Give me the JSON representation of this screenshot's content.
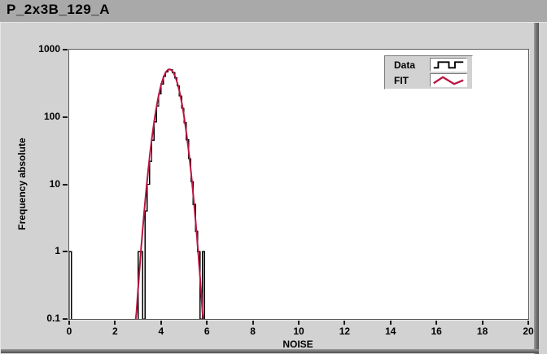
{
  "window": {
    "title": "P_2x3B_129_A"
  },
  "colors": {
    "titlebar_bg": "#a9a9a9",
    "panel_bg": "#d2d2d2",
    "plot_bg": "#ffffff",
    "plot_border": "#5a5a5a",
    "text": "#000000",
    "data_series": "#000000",
    "fit_series": "#b81543"
  },
  "chart_data": {
    "type": "bar",
    "subtype": "histogram-with-gaussian-fit",
    "title": "P_2x3B_129_A",
    "xlabel": "NOISE",
    "ylabel": "Frequency absolute",
    "x_range": [
      0,
      20
    ],
    "y_range": [
      0.1,
      1000
    ],
    "y_scale": "log",
    "grid": false,
    "legend_position": "top-right-inside",
    "x_ticks": [
      0,
      2,
      4,
      6,
      8,
      10,
      12,
      14,
      16,
      18,
      20
    ],
    "y_ticks": [
      1000,
      100,
      10,
      1,
      0.1
    ],
    "y_tick_labels": [
      "1000",
      "100",
      "10",
      "1",
      "0.1"
    ],
    "series": [
      {
        "name": "Data",
        "color": "#000000",
        "style": "step-histogram",
        "bins": {
          "start": 3.0,
          "width": 0.1,
          "counts": [
            1,
            1,
            0,
            4,
            10,
            22,
            45,
            85,
            145,
            220,
            310,
            400,
            465,
            505,
            500,
            455,
            380,
            290,
            205,
            135,
            82,
            46,
            24,
            11,
            5,
            2,
            1,
            0,
            1
          ]
        },
        "extra_bins": [
          {
            "start": 0.0,
            "width": 0.1,
            "count": 1
          }
        ]
      },
      {
        "name": "FIT",
        "color": "#b81543",
        "style": "gaussian-curve",
        "fit_params": {
          "amplitude": 510,
          "mean": 4.37,
          "sigma": 0.353
        },
        "x_from": 2.9,
        "x_to": 5.86
      }
    ]
  },
  "legend": {
    "entries": [
      {
        "label": "Data",
        "icon": "step-line-icon"
      },
      {
        "label": "FIT",
        "icon": "zigzag-line-icon"
      }
    ]
  }
}
